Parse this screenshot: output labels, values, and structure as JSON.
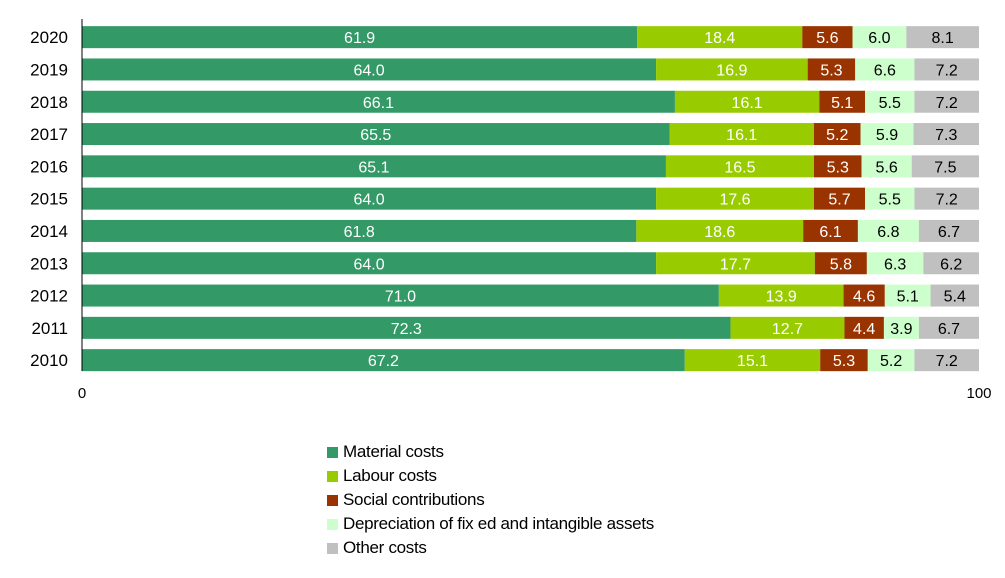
{
  "chart_data": {
    "type": "bar",
    "orientation": "horizontal",
    "stacked": true,
    "categories": [
      "2020",
      "2019",
      "2018",
      "2017",
      "2016",
      "2015",
      "2014",
      "2013",
      "2012",
      "2011",
      "2010"
    ],
    "series": [
      {
        "name": "Material costs",
        "color": "#339966",
        "label_color": "#ffffff",
        "values": [
          61.9,
          64.0,
          66.1,
          65.5,
          65.1,
          64.0,
          61.8,
          64.0,
          71.0,
          72.3,
          67.2
        ]
      },
      {
        "name": "Labour costs",
        "color": "#99cc00",
        "label_color": "#ffffff",
        "values": [
          18.4,
          16.9,
          16.1,
          16.1,
          16.5,
          17.6,
          18.6,
          17.7,
          13.9,
          12.7,
          15.1
        ]
      },
      {
        "name": "Social contributions",
        "color": "#993300",
        "label_color": "#ffffff",
        "values": [
          5.6,
          5.3,
          5.1,
          5.2,
          5.3,
          5.7,
          6.1,
          5.8,
          4.6,
          4.4,
          5.3
        ]
      },
      {
        "name": "Depreciation of fix ed and intangible assets",
        "color": "#ccffcc",
        "label_color": "#000000",
        "values": [
          6.0,
          6.6,
          5.5,
          5.9,
          5.6,
          5.5,
          6.8,
          6.3,
          5.1,
          3.9,
          5.2
        ]
      },
      {
        "name": "Other costs",
        "color": "#c0c0c0",
        "label_color": "#000000",
        "values": [
          8.1,
          7.2,
          7.2,
          7.3,
          7.5,
          7.2,
          6.7,
          6.2,
          5.4,
          6.7,
          7.2
        ]
      }
    ],
    "xlim": [
      0,
      100
    ],
    "x_ticks": [
      "0",
      "100"
    ],
    "grid": false,
    "legend_position": "bottom"
  }
}
